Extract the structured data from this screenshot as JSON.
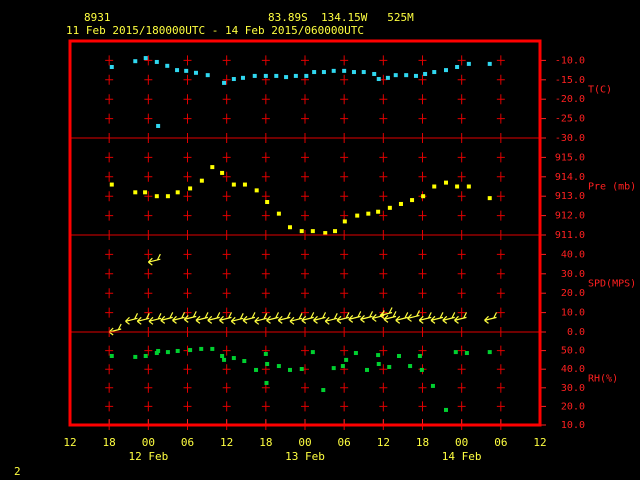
{
  "header": {
    "station": "8931",
    "location": "83.89S  134.15W   525M",
    "period": "11 Feb 2015/180000UTC - 14 Feb 2015/060000UTC"
  },
  "footer": "2",
  "chart_data": [
    {
      "type": "scatter",
      "ylabel": "T(C)",
      "color": "#30d8f0",
      "ylim": [
        -30,
        -5
      ],
      "yticks": [
        {
          "value": -10,
          "label": "-10.0"
        },
        {
          "value": -15,
          "label": "-15.0"
        },
        {
          "value": -20,
          "label": "-20.0"
        },
        {
          "value": -25,
          "label": "-25.0"
        },
        {
          "value": -30,
          "label": "-30.0"
        }
      ],
      "xlim": [
        0,
        72
      ],
      "x": [
        6.4,
        10,
        11.6,
        13.3,
        13.5,
        14.9,
        16.4,
        17.8,
        19.3,
        21.1,
        23.6,
        25.1,
        26.5,
        28.3,
        30,
        31.6,
        33.1,
        34.6,
        36.2,
        37.4,
        38.9,
        40.4,
        42,
        43.5,
        45,
        46.6,
        47.3,
        48.7,
        49.9,
        51.5,
        53,
        54.4,
        55.8,
        57.6,
        59.3,
        61.1,
        64.3
      ],
      "values": [
        -11.7,
        -10.2,
        -9.4,
        -10.4,
        -26.9,
        -11.4,
        -12.5,
        -12.7,
        -13.2,
        -13.8,
        -15.8,
        -14.8,
        -14.5,
        -14,
        -14,
        -14,
        -14.3,
        -14,
        -14,
        -13,
        -13,
        -12.7,
        -12.7,
        -13,
        -13,
        -13.5,
        -14.8,
        -14.5,
        -13.8,
        -13.8,
        -14,
        -13.5,
        -13,
        -12.5,
        -11.7,
        -10.9,
        -10.9
      ]
    },
    {
      "type": "scatter",
      "ylabel": "Pre (mb)",
      "color": "#ffff00",
      "ylim": [
        911,
        916
      ],
      "yticks": [
        {
          "value": 915,
          "label": "915.0"
        },
        {
          "value": 914,
          "label": "914.0"
        },
        {
          "value": 913,
          "label": "913.0"
        },
        {
          "value": 912,
          "label": "912.0"
        },
        {
          "value": 911,
          "label": "911.0"
        }
      ],
      "xlim": [
        0,
        72
      ],
      "x": [
        6.4,
        10,
        11.5,
        13.3,
        15,
        16.5,
        18.4,
        20.2,
        21.8,
        23.3,
        25.1,
        26.8,
        28.6,
        30.2,
        32,
        33.7,
        35.5,
        37.2,
        39.1,
        40.6,
        42.1,
        44,
        45.7,
        47.2,
        49,
        50.7,
        52.4,
        54.1,
        55.8,
        57.6,
        59.3,
        61.1,
        64.3
      ],
      "values": [
        913.6,
        913.2,
        913.2,
        913,
        913,
        913.2,
        913.4,
        913.8,
        914.5,
        914.2,
        913.6,
        913.6,
        913.3,
        912.7,
        912.1,
        911.4,
        911.2,
        911.2,
        911.1,
        911.2,
        911.7,
        912,
        912.1,
        912.2,
        912.4,
        912.6,
        912.8,
        913,
        913.5,
        913.7,
        913.5,
        913.5,
        912.9
      ]
    },
    {
      "type": "barb",
      "ylabel": "SPD(MPS)",
      "color": "#ffff40",
      "ylim": [
        0,
        50
      ],
      "yticks": [
        {
          "value": 40,
          "label": "40.0"
        },
        {
          "value": 30,
          "label": "30.0"
        },
        {
          "value": 20,
          "label": "20.0"
        },
        {
          "value": 10,
          "label": "10.0"
        },
        {
          "value": 0,
          "label": "0.0"
        }
      ],
      "xlim": [
        0,
        72
      ],
      "x": [
        6,
        8.5,
        10.3,
        12,
        12.1,
        13.9,
        15.7,
        17.5,
        19.3,
        21.1,
        22.9,
        24.7,
        26.5,
        28.3,
        30.1,
        31.9,
        33.7,
        35.5,
        37.3,
        39.1,
        40.9,
        42.7,
        44.5,
        46.3,
        47.5,
        48.1,
        49.9,
        51.7,
        53.5,
        55.3,
        57.1,
        58.9,
        63.5
      ],
      "values": [
        0,
        5.5,
        5.5,
        36,
        5.5,
        6,
        6,
        6.5,
        6,
        6,
        6,
        5.5,
        6,
        5.5,
        6,
        6,
        5.5,
        6,
        6,
        5.5,
        6,
        6.5,
        6.5,
        7,
        8.5,
        6.5,
        6,
        7,
        6,
        6,
        6,
        6,
        6
      ]
    },
    {
      "type": "scatter",
      "ylabel": "RH(%)",
      "color": "#00d030",
      "ylim": [
        10,
        60
      ],
      "yticks": [
        {
          "value": 50,
          "label": "50.0"
        },
        {
          "value": 40,
          "label": "40.0"
        },
        {
          "value": 30,
          "label": "30.0"
        },
        {
          "value": 20,
          "label": "20.0"
        },
        {
          "value": 10,
          "label": "10.0"
        }
      ],
      "xlim": [
        0,
        72
      ],
      "xticks": [
        {
          "value": 0,
          "label": "12"
        },
        {
          "value": 6,
          "label": "18"
        },
        {
          "value": 12,
          "label": "00"
        },
        {
          "value": 18,
          "label": "06"
        },
        {
          "value": 24,
          "label": "12"
        },
        {
          "value": 30,
          "label": "18"
        },
        {
          "value": 36,
          "label": "00"
        },
        {
          "value": 42,
          "label": "06"
        },
        {
          "value": 48,
          "label": "12"
        },
        {
          "value": 54,
          "label": "18"
        },
        {
          "value": 60,
          "label": "00"
        },
        {
          "value": 66,
          "label": "06"
        },
        {
          "value": 72,
          "label": "12"
        }
      ],
      "annotations": [
        {
          "text": "12 Feb",
          "x": 12
        },
        {
          "text": "13 Feb",
          "x": 36
        },
        {
          "text": "14 Feb",
          "x": 60
        }
      ],
      "x": [
        6.4,
        10,
        11.6,
        13.3,
        13.5,
        15,
        16.5,
        18.4,
        20.1,
        21.8,
        23.3,
        23.6,
        25.1,
        26.7,
        28.5,
        30,
        30.2,
        30.1,
        32,
        33.7,
        35.5,
        37.2,
        38.8,
        40.4,
        41.8,
        42.3,
        43.8,
        45.5,
        47.2,
        47.3,
        48.9,
        50.4,
        52.1,
        53.6,
        53.9,
        55.6,
        57.6,
        59.1,
        60.8,
        64.3
      ],
      "values": [
        47.1,
        46.6,
        47.1,
        48.7,
        49.8,
        49.2,
        49.8,
        50.3,
        50.9,
        50.9,
        47.1,
        45,
        46,
        44.4,
        39.6,
        48.2,
        42.8,
        32.6,
        41.7,
        39.6,
        40.1,
        49.2,
        28.8,
        40.6,
        41.7,
        45,
        48.7,
        39.6,
        47.6,
        42.8,
        41.2,
        47.1,
        41.7,
        47.1,
        39.6,
        31,
        18.1,
        49.2,
        48.7,
        49.2
      ]
    }
  ]
}
